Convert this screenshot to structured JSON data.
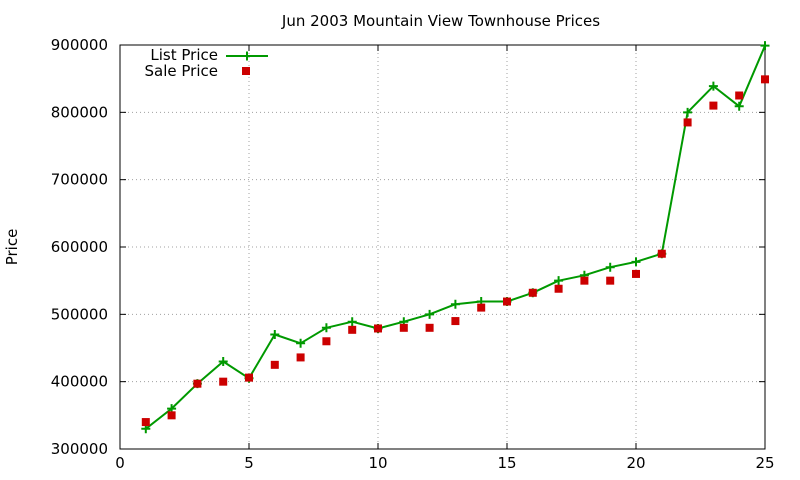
{
  "chart_data": {
    "type": "line",
    "title": "Jun 2003 Mountain View Townhouse Prices",
    "xlabel": "",
    "ylabel": "Price",
    "xlim": [
      0,
      25
    ],
    "ylim": [
      300000,
      900000
    ],
    "xticks": [
      0,
      5,
      10,
      15,
      20,
      25
    ],
    "yticks": [
      300000,
      400000,
      500000,
      600000,
      700000,
      800000,
      900000
    ],
    "grid": true,
    "legend_position": "top-left",
    "series": [
      {
        "name": "List Price",
        "style": "linespoints",
        "marker": "plus",
        "color": "#009900",
        "x": [
          1,
          2,
          3,
          4,
          5,
          6,
          7,
          8,
          9,
          10,
          11,
          12,
          13,
          14,
          15,
          16,
          17,
          18,
          19,
          20,
          21,
          22,
          23,
          24,
          25
        ],
        "y": [
          330000,
          360000,
          397000,
          430000,
          405000,
          470000,
          457000,
          480000,
          489000,
          479000,
          489000,
          500000,
          515000,
          519000,
          519000,
          532000,
          550000,
          558000,
          570000,
          578000,
          590000,
          800000,
          839000,
          809000,
          899000
        ]
      },
      {
        "name": "Sale Price",
        "style": "points",
        "marker": "square",
        "color": "#cc0000",
        "x": [
          1,
          2,
          3,
          4,
          5,
          6,
          7,
          8,
          9,
          10,
          11,
          12,
          13,
          14,
          15,
          16,
          17,
          18,
          19,
          20,
          21,
          22,
          23,
          24,
          25
        ],
        "y": [
          340000,
          350000,
          397000,
          400000,
          406000,
          425000,
          436000,
          460000,
          477000,
          479000,
          480000,
          480000,
          490000,
          510000,
          519000,
          532000,
          538000,
          550000,
          550000,
          560000,
          590000,
          785000,
          810000,
          825000,
          849000
        ]
      }
    ]
  }
}
